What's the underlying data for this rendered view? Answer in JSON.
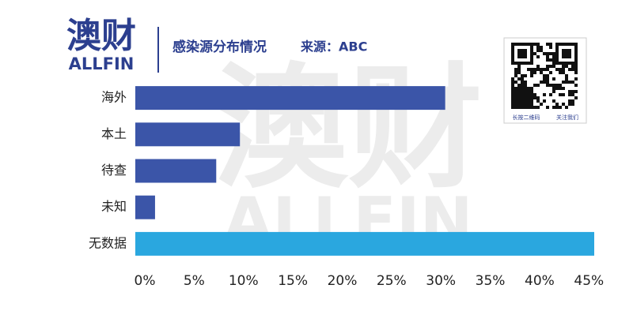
{
  "header": {
    "logo": "澳财",
    "logo_sub": "ALLFIN",
    "title": "感染源分布情况",
    "source": "来源：ABC"
  },
  "qr": {
    "caption_left": "长按二维码",
    "caption_right": "关注我们"
  },
  "chart_data": {
    "type": "bar",
    "orientation": "horizontal",
    "categories": [
      "海外",
      "本土",
      "待查",
      "未知",
      "无数据"
    ],
    "values": [
      31.4,
      10.6,
      8.2,
      2.0,
      46.5
    ],
    "colors": [
      "#3b55a8",
      "#3b55a8",
      "#3b55a8",
      "#3b55a8",
      "#2aa7df"
    ],
    "xlim": [
      0,
      46.5
    ],
    "xticks": [
      {
        "value": 0,
        "label": "0%"
      },
      {
        "value": 5,
        "label": "5%"
      },
      {
        "value": 10,
        "label": "10%"
      },
      {
        "value": 15,
        "label": "15%"
      },
      {
        "value": 20,
        "label": "20%"
      },
      {
        "value": 25,
        "label": "25%"
      },
      {
        "value": 30,
        "label": "30%"
      },
      {
        "value": 35,
        "label": "35%"
      },
      {
        "value": 40,
        "label": "40%"
      },
      {
        "value": 45,
        "label": "45%"
      }
    ],
    "grid": false
  }
}
